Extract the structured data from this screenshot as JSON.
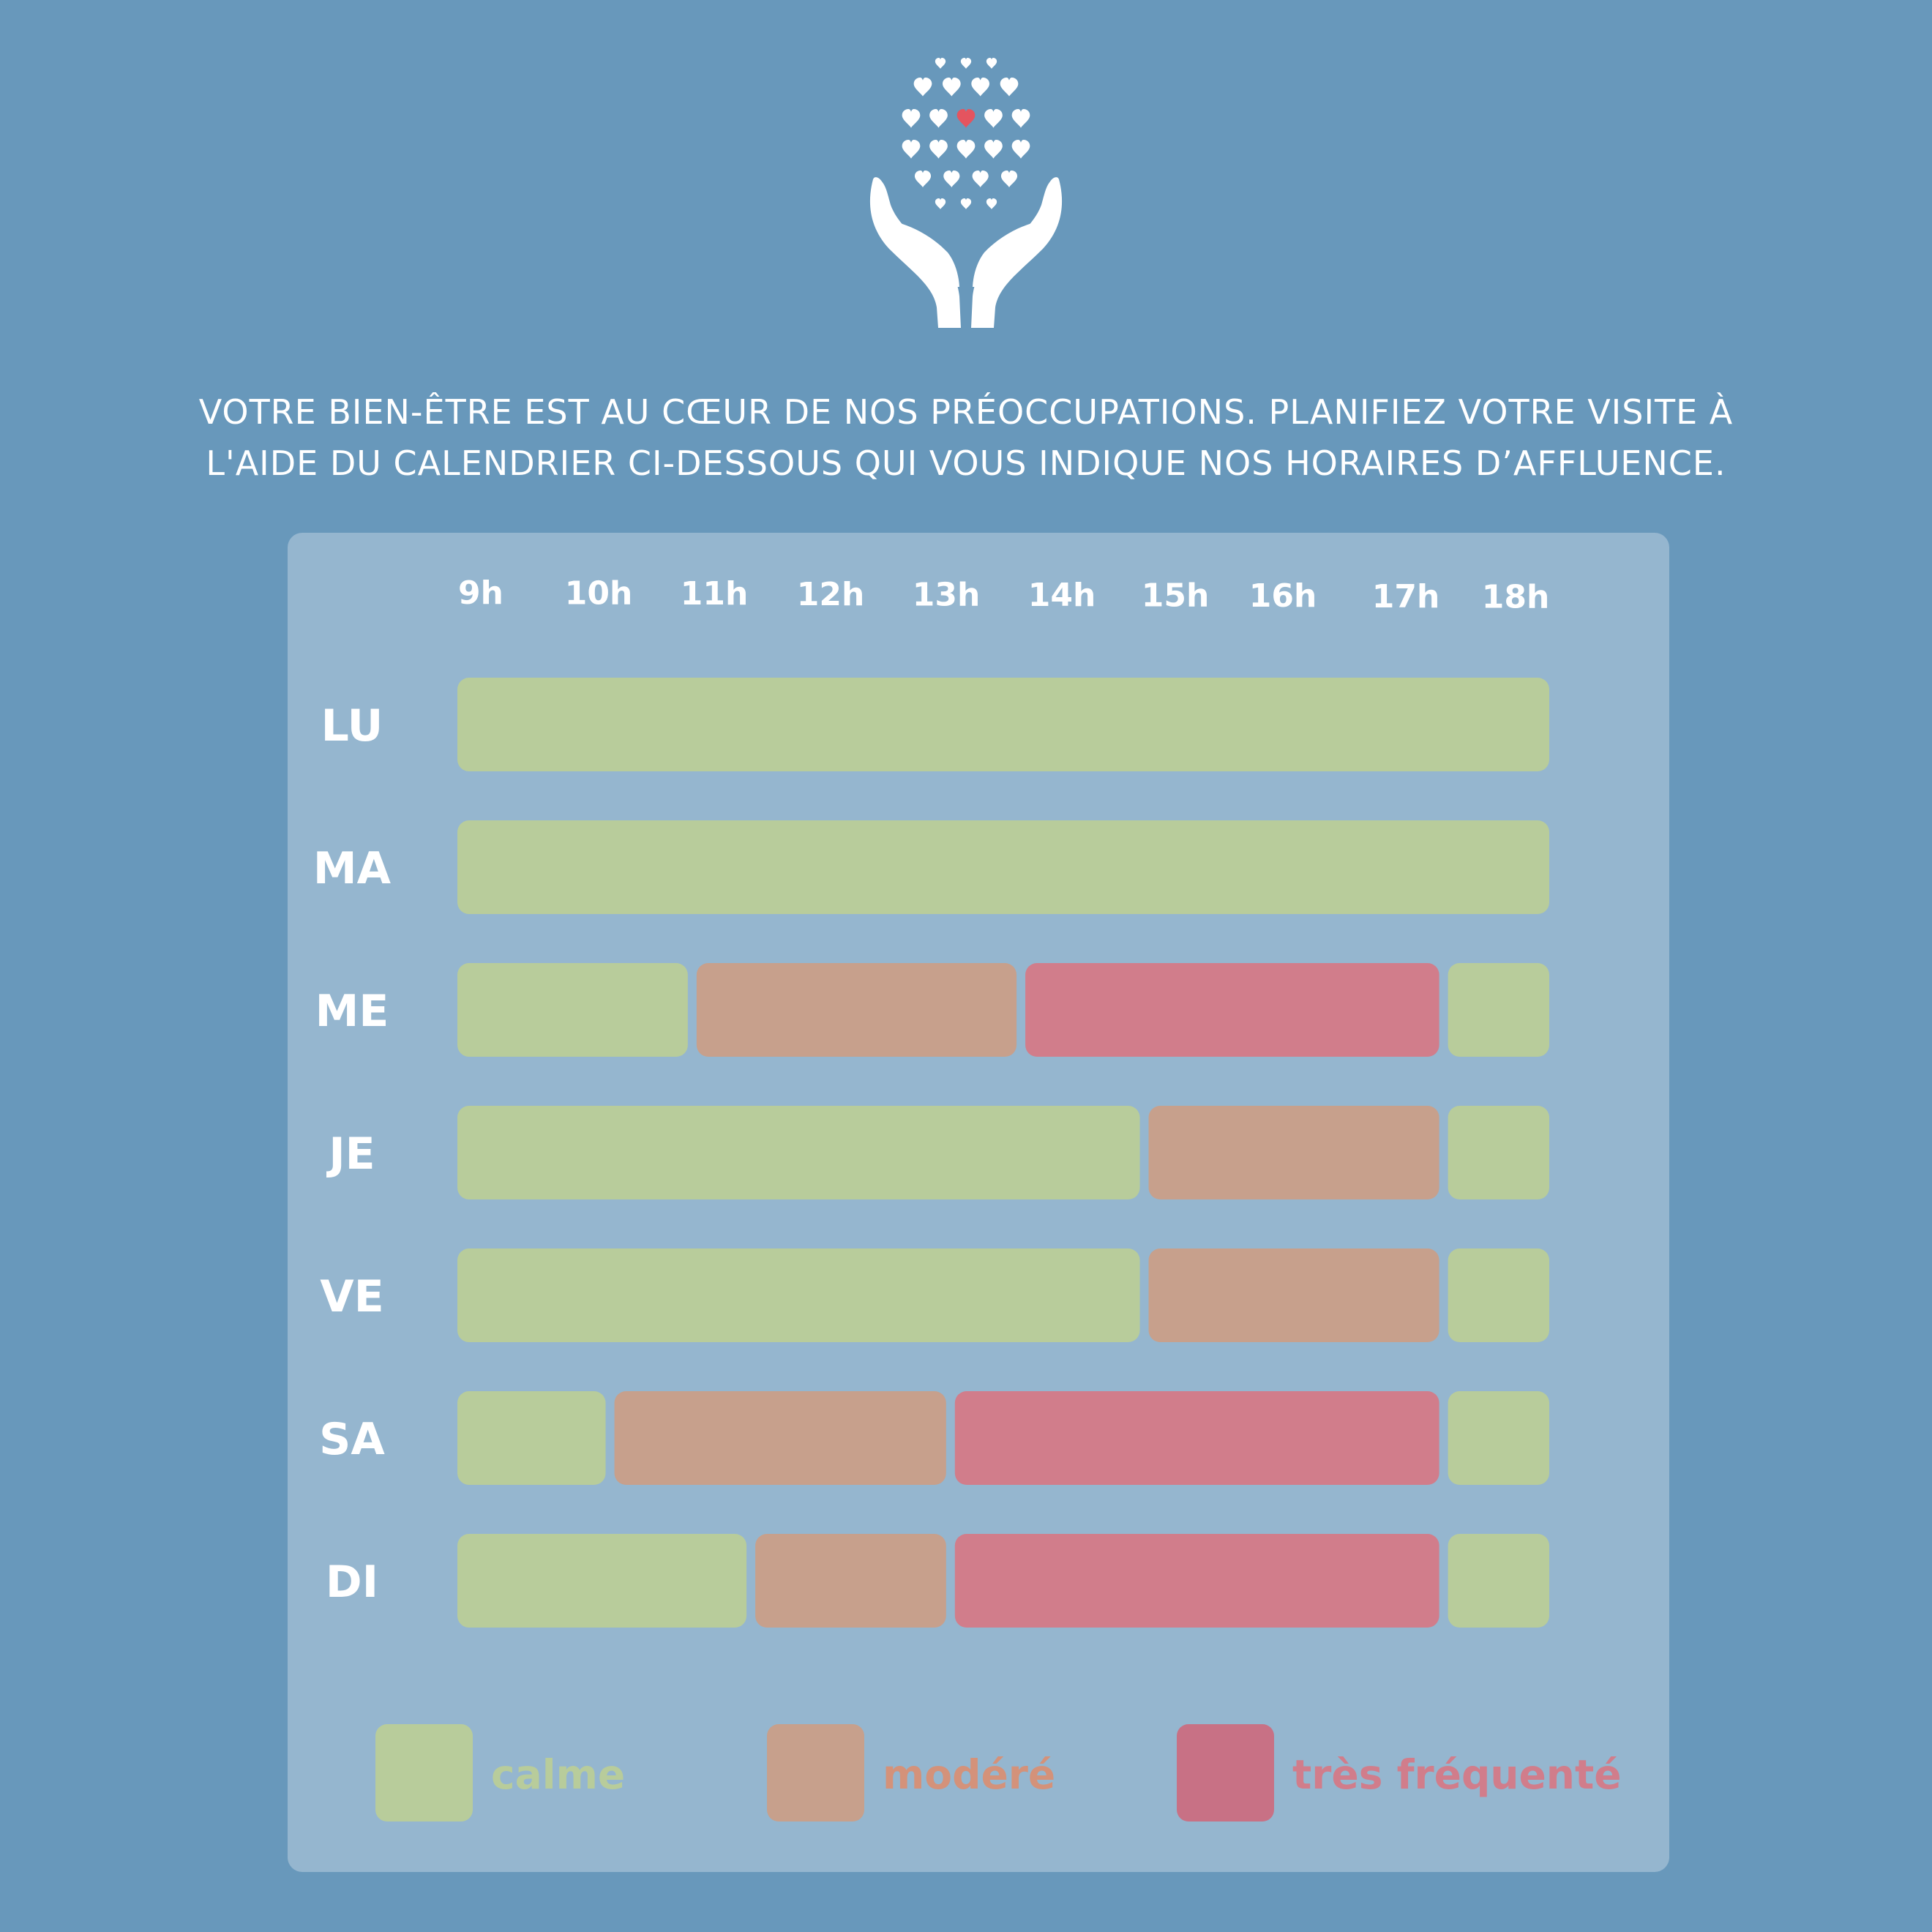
{
  "intro": {
    "line1": "VOTRE BIEN-ÊTRE EST AU CŒUR DE NOS PRÉOCCUPATIONS. PLANIFIEZ VOTRE VISITE À",
    "line2": "L'AIDE DU CALENDRIER CI-DESSOUS QUI VOUS INDIQUE NOS HORAIRES D’AFFLUENCE."
  },
  "logo": {
    "icon": "hands-holding-hearts-icon",
    "accent_color": "#e4545f",
    "color": "#ffffff"
  },
  "colors": {
    "background": "#6898bb",
    "panel": "#95b6cf",
    "calme": "#b8cc9b",
    "modere": "#c7a08c",
    "tres_frequente": "#d17d8b"
  },
  "legend": [
    {
      "key": "calme",
      "label": "calme",
      "swatch": "#b8cc9b",
      "text_color": "#b8cc9b"
    },
    {
      "key": "modere",
      "label": "modéré",
      "swatch": "#c7a08c",
      "text_color": "#d4927a"
    },
    {
      "key": "tres_frequente",
      "label": "très fréquenté",
      "swatch": "#c87185",
      "text_color": "#d17d8b"
    }
  ],
  "chart_data": {
    "type": "timeline",
    "x_ticks": [
      "9h",
      "10h",
      "11h",
      "12h",
      "13h",
      "14h",
      "15h",
      "16h",
      "17h",
      "18h"
    ],
    "x_range": [
      9,
      18.3
    ],
    "levels": [
      "calme",
      "modere",
      "tres_frequente"
    ],
    "rows": [
      {
        "day": "LU",
        "segments": [
          {
            "start": 9,
            "end": 18.3,
            "level": "calme"
          }
        ]
      },
      {
        "day": "MA",
        "segments": [
          {
            "start": 9,
            "end": 18.3,
            "level": "calme"
          }
        ]
      },
      {
        "day": "ME",
        "segments": [
          {
            "start": 9,
            "end": 11,
            "level": "calme"
          },
          {
            "start": 11,
            "end": 13.8,
            "level": "modere"
          },
          {
            "start": 13.8,
            "end": 17.4,
            "level": "tres_frequente"
          },
          {
            "start": 17.4,
            "end": 18.3,
            "level": "calme"
          }
        ]
      },
      {
        "day": "JE",
        "segments": [
          {
            "start": 9,
            "end": 14.85,
            "level": "calme"
          },
          {
            "start": 14.85,
            "end": 17.4,
            "level": "modere"
          },
          {
            "start": 17.4,
            "end": 18.3,
            "level": "calme"
          }
        ]
      },
      {
        "day": "VE",
        "segments": [
          {
            "start": 9,
            "end": 14.85,
            "level": "calme"
          },
          {
            "start": 14.85,
            "end": 17.4,
            "level": "modere"
          },
          {
            "start": 17.4,
            "end": 18.3,
            "level": "calme"
          }
        ]
      },
      {
        "day": "SA",
        "segments": [
          {
            "start": 9,
            "end": 10.3,
            "level": "calme"
          },
          {
            "start": 10.3,
            "end": 13.2,
            "level": "modere"
          },
          {
            "start": 13.2,
            "end": 17.4,
            "level": "tres_frequente"
          },
          {
            "start": 17.4,
            "end": 18.3,
            "level": "calme"
          }
        ]
      },
      {
        "day": "DI",
        "segments": [
          {
            "start": 9,
            "end": 11.5,
            "level": "calme"
          },
          {
            "start": 11.5,
            "end": 13.2,
            "level": "modere"
          },
          {
            "start": 13.2,
            "end": 17.4,
            "level": "tres_frequente"
          },
          {
            "start": 17.4,
            "end": 18.3,
            "level": "calme"
          }
        ]
      }
    ]
  }
}
